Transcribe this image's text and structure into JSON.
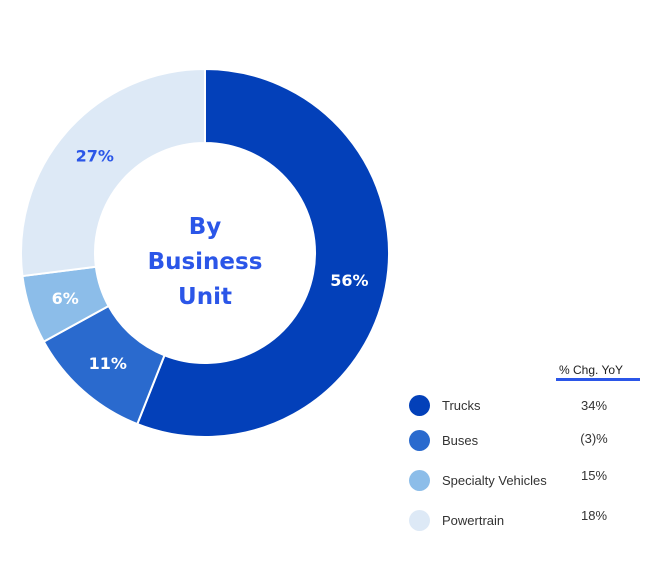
{
  "colors": {
    "trucks": "#0340b9",
    "buses": "#2a6ace",
    "specialty": "#8cbde9",
    "powertrain": "#dde9f6",
    "accent": "#2b56e8"
  },
  "center_label": [
    "By",
    "Business",
    "Unit"
  ],
  "legend": {
    "header": "% Chg. YoY",
    "items": [
      {
        "label": "Trucks",
        "change": "34%"
      },
      {
        "label": "Buses",
        "change": "(3)%"
      },
      {
        "label": "Specialty Vehicles",
        "change": "15%"
      },
      {
        "label": "Powertrain",
        "change": "18%"
      }
    ]
  },
  "chart_data": {
    "type": "pie",
    "variant": "donut",
    "title": "By Business Unit",
    "categories": [
      "Trucks",
      "Buses",
      "Specialty Vehicles",
      "Powertrain"
    ],
    "values": [
      56,
      11,
      6,
      27
    ],
    "value_labels": [
      "56%",
      "11%",
      "6%",
      "27%"
    ],
    "yoy_change": [
      "34%",
      "(3)%",
      "15%",
      "18%"
    ],
    "start_angle": "12 o'clock",
    "direction": "clockwise",
    "legend_position": "bottom-right"
  }
}
